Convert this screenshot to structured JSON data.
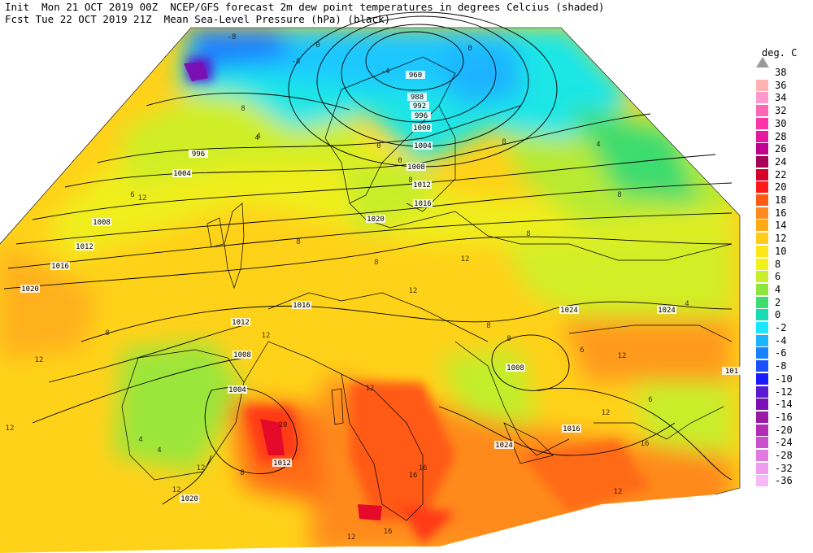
{
  "header": {
    "line1": "Init  Mon 21 OCT 2019 00Z  NCEP/GFS forecast 2m dew point temperatures in degrees Celcius (shaded)",
    "line2": "Fcst Tue 22 OCT 2019 21Z  Mean Sea-Level Pressure (hPa) (black)"
  },
  "legend": {
    "title": "deg. C",
    "entries": [
      {
        "label": "38",
        "color": "#bfbfbf"
      },
      {
        "label": "36",
        "color": "#ffb3b3"
      },
      {
        "label": "34",
        "color": "#ff99cc"
      },
      {
        "label": "32",
        "color": "#ff66b3"
      },
      {
        "label": "30",
        "color": "#ff33a8"
      },
      {
        "label": "28",
        "color": "#e6199e"
      },
      {
        "label": "26",
        "color": "#c2008f"
      },
      {
        "label": "24",
        "color": "#a6005a"
      },
      {
        "label": "22",
        "color": "#d6002a"
      },
      {
        "label": "20",
        "color": "#ff1a1a"
      },
      {
        "label": "18",
        "color": "#ff5a14"
      },
      {
        "label": "16",
        "color": "#ff8a1f"
      },
      {
        "label": "14",
        "color": "#ffaa14"
      },
      {
        "label": "12",
        "color": "#ffcc1a"
      },
      {
        "label": "10",
        "color": "#ffe61a"
      },
      {
        "label": "8",
        "color": "#f2f21a"
      },
      {
        "label": "6",
        "color": "#c8ee2a"
      },
      {
        "label": "4",
        "color": "#8ce63c"
      },
      {
        "label": "2",
        "color": "#3cdc6e"
      },
      {
        "label": "0",
        "color": "#1adcb4"
      },
      {
        "label": "-2",
        "color": "#1ae6ff"
      },
      {
        "label": "-4",
        "color": "#1ab4ff"
      },
      {
        "label": "-6",
        "color": "#1a82ff"
      },
      {
        "label": "-8",
        "color": "#1a50ff"
      },
      {
        "label": "-10",
        "color": "#1a1aff"
      },
      {
        "label": "-12",
        "color": "#5a1ad2"
      },
      {
        "label": "-14",
        "color": "#7a10b4"
      },
      {
        "label": "-16",
        "color": "#9a1aa6"
      },
      {
        "label": "-20",
        "color": "#b42cb4"
      },
      {
        "label": "-24",
        "color": "#cc50cc"
      },
      {
        "label": "-28",
        "color": "#e07ae0"
      },
      {
        "label": "-32",
        "color": "#f09af0"
      },
      {
        "label": "-36",
        "color": "#f8b8f8"
      }
    ]
  },
  "isobar_labels": [
    "960",
    "988",
    "992",
    "996",
    "1000",
    "1004",
    "1008",
    "1012",
    "1016",
    "1020",
    "1024",
    "1008",
    "1000",
    "996",
    "1004",
    "1008",
    "1012",
    "1016",
    "1020",
    "1016",
    "1012",
    "1008",
    "1004",
    "1012",
    "1020",
    "1024",
    "1024",
    "1016",
    "1020",
    "1020",
    "1016",
    "1012",
    "101"
  ],
  "dewpoint_labels": [
    "-8",
    "-8",
    "8",
    "0",
    "0",
    "0",
    "4",
    "4",
    "6",
    "12",
    "8",
    "8",
    "8",
    "8",
    "12",
    "8",
    "12",
    "12",
    "12",
    "12",
    "12",
    "12",
    "8",
    "4",
    "20",
    "16",
    "12",
    "16",
    "16",
    "12",
    "12",
    "8",
    "4",
    "8",
    "8",
    "6",
    "6",
    "12",
    "16",
    "0",
    "12",
    "4",
    "4",
    "8",
    "-4"
  ]
}
